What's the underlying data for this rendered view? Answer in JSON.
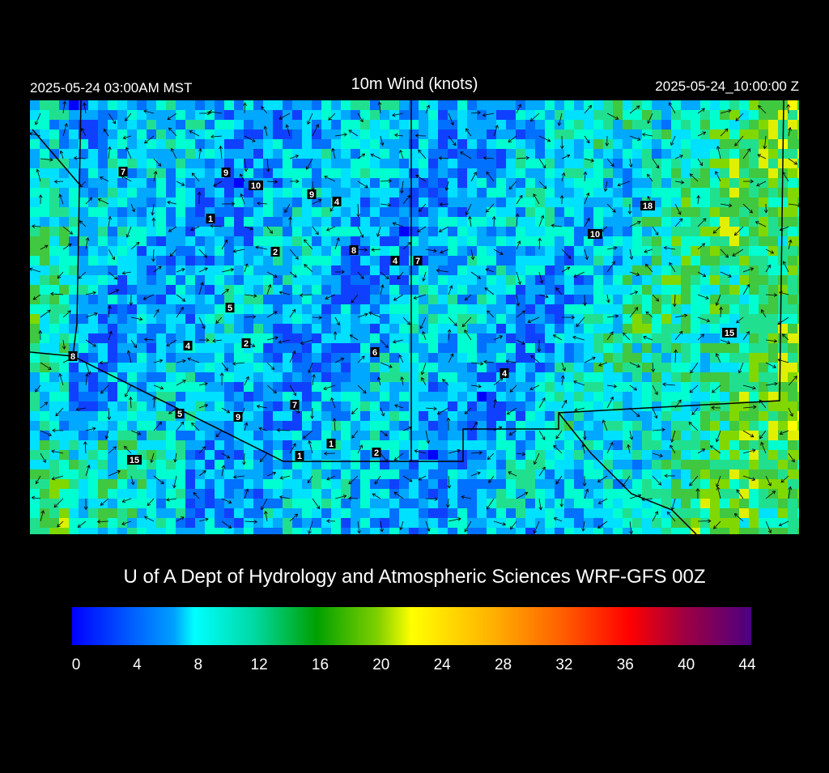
{
  "header": {
    "left": "2025-05-24 03:00AM MST",
    "title": "10m Wind (knots)",
    "right": "2025-05-24_10:00:00 Z"
  },
  "station_labels": [
    7,
    9,
    10,
    9,
    4,
    1,
    18,
    10,
    2,
    8,
    4,
    7,
    5,
    15,
    4,
    2,
    6,
    8,
    4,
    7,
    5,
    9,
    1,
    1,
    2,
    15
  ],
  "footer": "U of A Dept of Hydrology and Atmospheric Sciences WRF-GFS 00Z",
  "colorbar": {
    "range": [
      0,
      44
    ],
    "ticks": [
      0,
      4,
      8,
      12,
      16,
      20,
      24,
      28,
      32,
      36,
      40,
      44
    ]
  }
}
